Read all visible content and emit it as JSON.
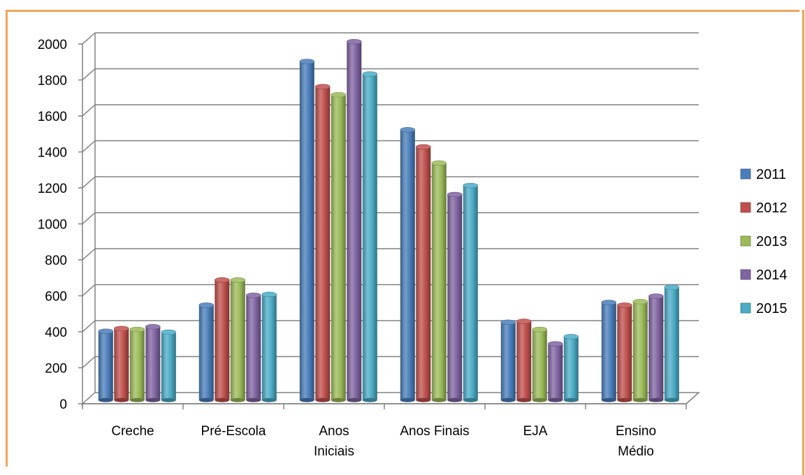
{
  "chart_data": {
    "type": "bar",
    "categories": [
      [
        "Creche"
      ],
      [
        "Pré-Escola"
      ],
      [
        "Anos",
        "Iniciais"
      ],
      [
        "Anos Finais"
      ],
      [
        "EJA"
      ],
      [
        "Ensino",
        "Médio"
      ]
    ],
    "series": [
      {
        "name": "2011",
        "color": "#4a7ebb",
        "values": [
          375,
          520,
          1875,
          1495,
          425,
          535
        ]
      },
      {
        "name": "2012",
        "color": "#c0504d",
        "values": [
          390,
          660,
          1735,
          1400,
          430,
          520
        ]
      },
      {
        "name": "2013",
        "color": "#9bbb59",
        "values": [
          385,
          660,
          1690,
          1310,
          385,
          540
        ]
      },
      {
        "name": "2014",
        "color": "#8064a2",
        "values": [
          400,
          575,
          1985,
          1135,
          305,
          570
        ]
      },
      {
        "name": "2015",
        "color": "#4bacc6",
        "values": [
          370,
          580,
          1805,
          1185,
          345,
          620
        ]
      }
    ],
    "yticks": [
      "0",
      "200",
      "400",
      "600",
      "800",
      "1000",
      "1200",
      "1400",
      "1600",
      "1800",
      "2000"
    ],
    "ylim": [
      0,
      2000
    ],
    "grid": true,
    "legend_position": "right",
    "style": "3d-cylinder"
  }
}
